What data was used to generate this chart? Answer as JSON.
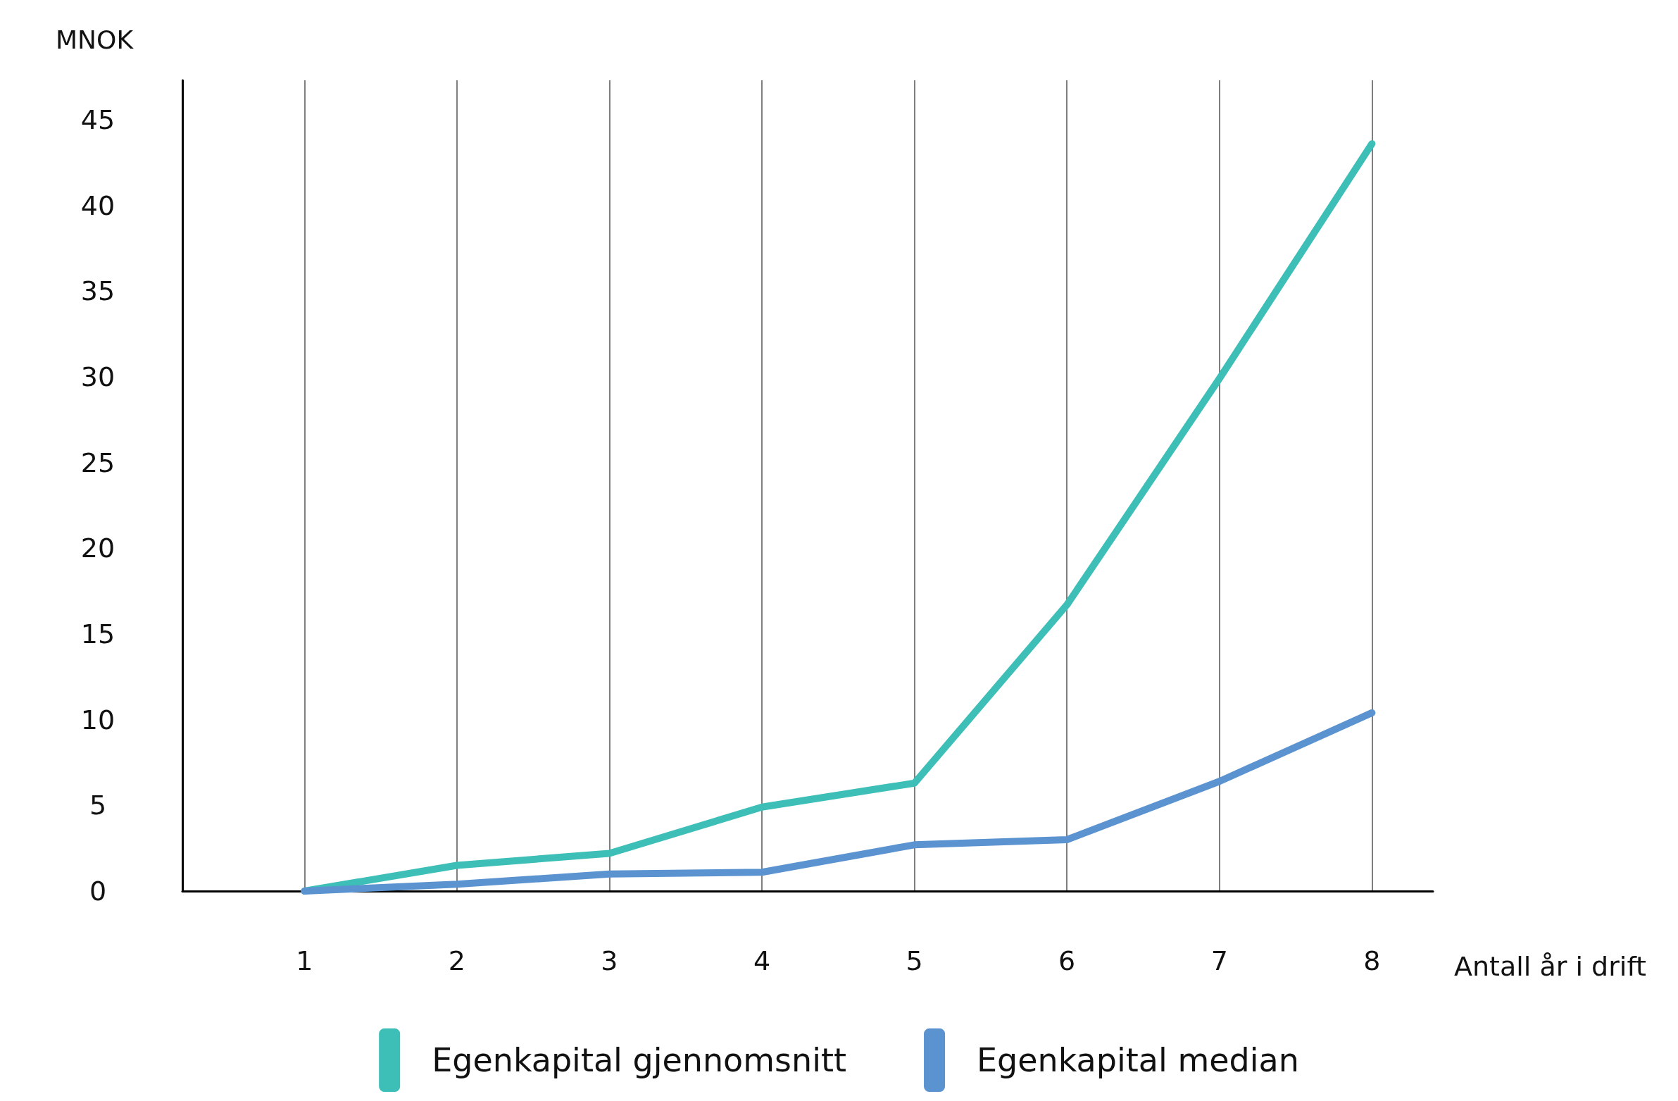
{
  "chart_data": {
    "type": "line",
    "xlabel": "Antall år i drift",
    "ylabel": "MNOK",
    "x": [
      1,
      2,
      3,
      4,
      5,
      6,
      7,
      8
    ],
    "series": [
      {
        "name": "Egenkapital gjennomsnitt",
        "color": "#3dbfb8",
        "values": [
          0,
          1.5,
          2.2,
          4.9,
          6.3,
          16.7,
          29.9,
          43.6
        ]
      },
      {
        "name": "Egenkapital median",
        "color": "#5b93d0",
        "values": [
          0,
          0.4,
          1.0,
          1.1,
          2.7,
          3.0,
          6.4,
          10.4
        ]
      }
    ],
    "xlim": [
      0.2,
      8.4
    ],
    "xticks": [
      1,
      2,
      3,
      4,
      5,
      6,
      7,
      8
    ],
    "ylim": [
      0,
      47.3
    ],
    "yticks": [
      0,
      5,
      10,
      15,
      20,
      25,
      30,
      35,
      40,
      45
    ],
    "grid": "x",
    "legend": "bottom",
    "marker": "none",
    "line_style": "solid"
  }
}
